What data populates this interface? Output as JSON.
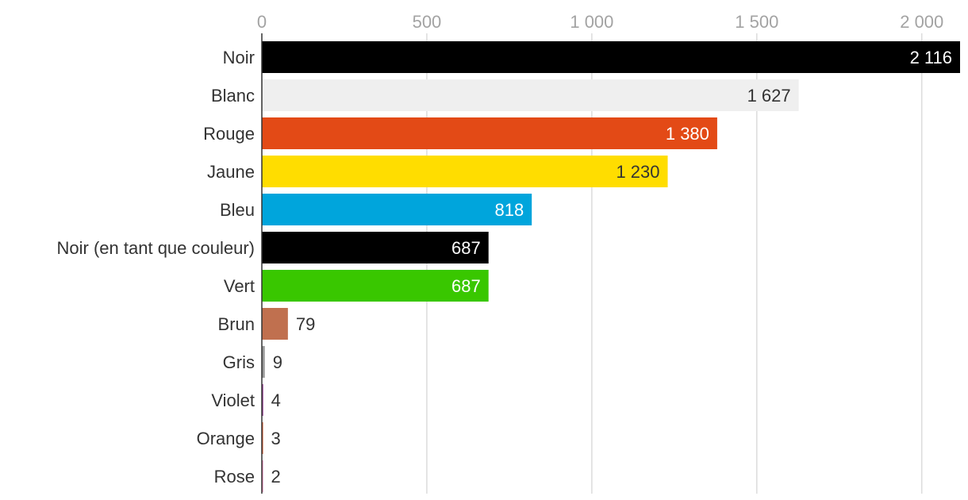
{
  "chart_data": {
    "type": "bar",
    "orientation": "horizontal",
    "categories": [
      "Noir",
      "Blanc",
      "Rouge",
      "Jaune",
      "Bleu",
      "Noir (en tant que couleur)",
      "Vert",
      "Brun",
      "Gris",
      "Violet",
      "Orange",
      "Rose"
    ],
    "values": [
      2116,
      1627,
      1380,
      1230,
      818,
      687,
      687,
      79,
      9,
      4,
      3,
      2
    ],
    "value_labels": [
      "2 116",
      "1 627",
      "1 380",
      "1 230",
      "818",
      "687",
      "687",
      "79",
      "9",
      "4",
      "3",
      "2"
    ],
    "bar_colors": [
      "#000000",
      "#efefef",
      "#e34a16",
      "#ffdd00",
      "#00a5dc",
      "#000000",
      "#39c700",
      "#c0704f",
      "#9a9a9a",
      "#8b2a88",
      "#e34a16",
      "#e86fa6"
    ],
    "value_label_colors": [
      "#ffffff",
      "#333333",
      "#ffffff",
      "#333333",
      "#ffffff",
      "#ffffff",
      "#ffffff",
      "#333333",
      "#333333",
      "#333333",
      "#333333",
      "#333333"
    ],
    "x_ticks": [
      0,
      500,
      1000,
      1500,
      2000
    ],
    "x_tick_labels": [
      "0",
      "500",
      "1 000",
      "1 500",
      "2 000"
    ],
    "xlim": [
      0,
      2116
    ],
    "grid": true,
    "title": "",
    "xlabel": "",
    "ylabel": "",
    "colors": {
      "gridline": "#dcdcdc",
      "axis": "#333333",
      "tick_text": "#a3a3a3",
      "category_text": "#333333"
    }
  }
}
